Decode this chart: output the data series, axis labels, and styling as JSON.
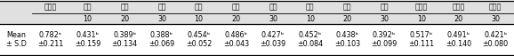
{
  "col_headers_line1": [
    "",
    "대조군",
    "감초",
    "감초",
    "감초",
    "작약",
    "작약",
    "작약",
    "천궁",
    "천궁",
    "천궁",
    "호장근",
    "호장근",
    "호장근"
  ],
  "col_headers_line2": [
    "",
    "",
    "10",
    "20",
    "30",
    "10",
    "20",
    "30",
    "10",
    "20",
    "30",
    "10",
    "20",
    "30"
  ],
  "means": [
    "0.782ᵃ",
    "0.431ᵇ",
    "0.389ᵇ",
    "0.388ᵇ",
    "0.454ᵇ",
    "0.486ᵇ",
    "0.427ᵇ",
    "0.452ᵇ",
    "0.438ᵇ",
    "0.392ᵇ",
    "0.517ᵇ",
    "0.491ᵇ",
    "0.421ᵇ"
  ],
  "sds": [
    "±0.211",
    "±0.159",
    "±0.134",
    "±0.069",
    "±0.052",
    "±0.043",
    "±0.039",
    "±0.084",
    "±0.103",
    "±0.099",
    "±0.111",
    "±0.140",
    "±0.080"
  ],
  "header_bg": "#e0e0e0",
  "data_bg": "#ffffff",
  "font_size": 5.8,
  "header_font_size": 5.8
}
